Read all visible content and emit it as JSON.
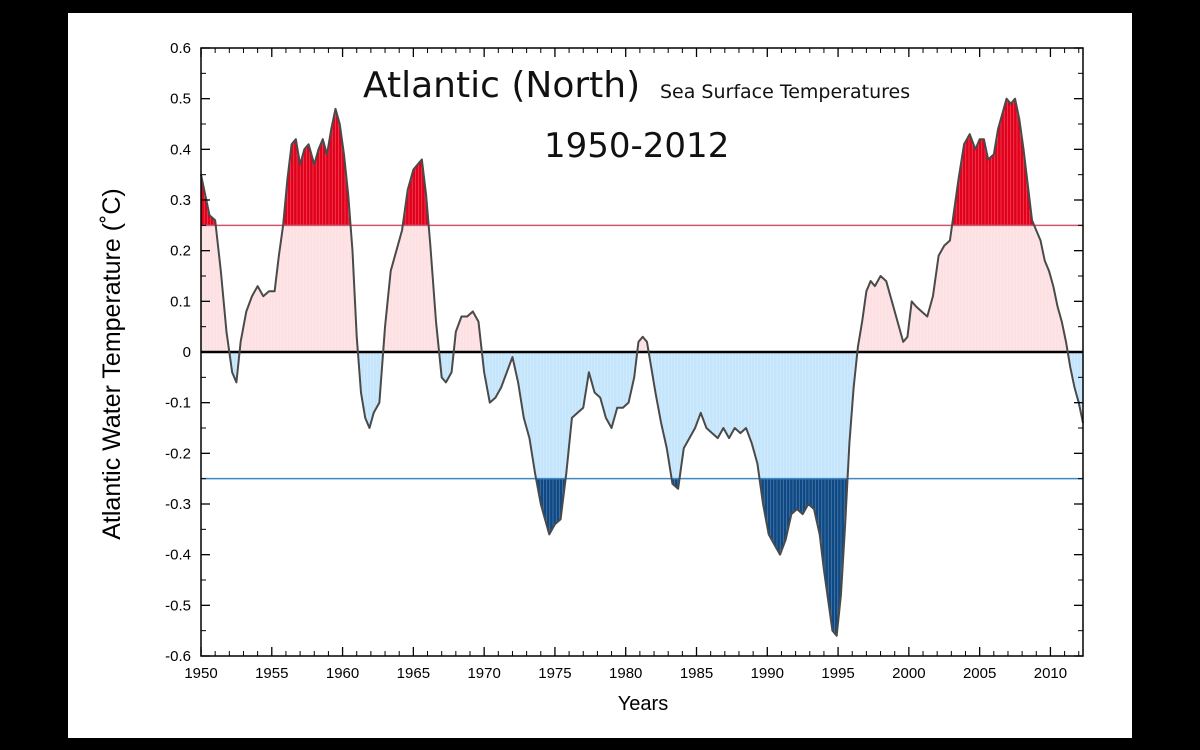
{
  "chart_data": {
    "type": "area",
    "title": "Atlantic (North)",
    "subtitle": "Sea Surface Temperatures",
    "period": "1950-2012",
    "xlabel": "Years",
    "ylabel": "Atlantic Water Temperature (˚C)",
    "xlim": [
      1950,
      2012.3
    ],
    "ylim": [
      -0.6,
      0.6
    ],
    "x_ticks": [
      1950,
      1955,
      1960,
      1965,
      1970,
      1975,
      1980,
      1985,
      1990,
      1995,
      2000,
      2005,
      2010
    ],
    "y_ticks": [
      0.6,
      0.5,
      0.4,
      0.3,
      0.2,
      0.1,
      0,
      -0.1,
      -0.2,
      -0.3,
      -0.4,
      -0.5,
      -0.6
    ],
    "thresholds": {
      "upper": 0.25,
      "lower": -0.25
    },
    "grid": false,
    "colors": {
      "line": "#4a4a4a",
      "zero_line": "#000000",
      "above_threshold": "#e3001b",
      "positive_fill": "#fde0e2",
      "negative_fill": "#c4e5fb",
      "below_threshold": "#0d4a85",
      "upper_threshold_line": "#d0566d",
      "lower_threshold_line": "#3e89c2"
    },
    "series": [
      {
        "x": [
          1950.0,
          1950.3,
          1950.6,
          1951.0,
          1951.4,
          1951.8,
          1952.2,
          1952.5,
          1952.8,
          1953.2,
          1953.6,
          1954.0,
          1954.4,
          1954.8,
          1955.2,
          1955.5,
          1955.8,
          1956.1,
          1956.4,
          1956.7,
          1957.0,
          1957.3,
          1957.6,
          1958.0,
          1958.3,
          1958.6,
          1958.9,
          1959.2,
          1959.5,
          1959.8,
          1960.1,
          1960.4,
          1960.7,
          1961.0,
          1961.3,
          1961.6,
          1961.9,
          1962.2,
          1962.6,
          1963.0,
          1963.4,
          1963.8,
          1964.2,
          1964.6,
          1965.0,
          1965.3,
          1965.6,
          1965.9,
          1966.2,
          1966.6,
          1967.0,
          1967.3,
          1967.7,
          1968.0,
          1968.4,
          1968.8,
          1969.2,
          1969.6,
          1970.0,
          1970.4,
          1970.8,
          1971.2,
          1971.6,
          1972.0,
          1972.4,
          1972.8,
          1973.2,
          1973.6,
          1974.0,
          1974.3,
          1974.6,
          1975.0,
          1975.4,
          1975.8,
          1976.2,
          1976.6,
          1977.0,
          1977.4,
          1977.8,
          1978.2,
          1978.6,
          1979.0,
          1979.4,
          1979.8,
          1980.2,
          1980.6,
          1980.9,
          1981.2,
          1981.5,
          1981.8,
          1982.1,
          1982.5,
          1982.9,
          1983.3,
          1983.7,
          1984.1,
          1984.5,
          1984.9,
          1985.3,
          1985.7,
          1986.1,
          1986.5,
          1986.9,
          1987.3,
          1987.7,
          1988.1,
          1988.5,
          1988.9,
          1989.3,
          1989.7,
          1990.1,
          1990.5,
          1990.9,
          1991.3,
          1991.7,
          1992.1,
          1992.5,
          1992.9,
          1993.3,
          1993.7,
          1994.0,
          1994.3,
          1994.6,
          1994.9,
          1995.2,
          1995.5,
          1995.8,
          1996.1,
          1996.4,
          1996.7,
          1997.0,
          1997.3,
          1997.6,
          1998.0,
          1998.4,
          1998.8,
          1999.2,
          1999.6,
          1999.9,
          2000.2,
          2000.5,
          2000.9,
          2001.3,
          2001.7,
          2002.1,
          2002.5,
          2002.9,
          2003.2,
          2003.5,
          2003.9,
          2004.3,
          2004.7,
          2005.0,
          2005.3,
          2005.6,
          2006.0,
          2006.3,
          2006.6,
          2006.9,
          2007.2,
          2007.5,
          2007.8,
          2008.1,
          2008.4,
          2008.7,
          2009.0,
          2009.3,
          2009.6,
          2009.9,
          2010.2,
          2010.5,
          2010.8,
          2011.1,
          2011.4,
          2011.7,
          2012.0,
          2012.3
        ],
        "y": [
          0.35,
          0.31,
          0.27,
          0.26,
          0.16,
          0.04,
          -0.04,
          -0.06,
          0.02,
          0.08,
          0.11,
          0.13,
          0.11,
          0.12,
          0.12,
          0.19,
          0.25,
          0.34,
          0.41,
          0.42,
          0.37,
          0.4,
          0.41,
          0.37,
          0.4,
          0.42,
          0.39,
          0.44,
          0.48,
          0.45,
          0.39,
          0.31,
          0.2,
          0.03,
          -0.08,
          -0.13,
          -0.15,
          -0.12,
          -0.1,
          0.05,
          0.16,
          0.2,
          0.24,
          0.32,
          0.36,
          0.37,
          0.38,
          0.31,
          0.21,
          0.06,
          -0.05,
          -0.06,
          -0.04,
          0.04,
          0.07,
          0.07,
          0.08,
          0.06,
          -0.04,
          -0.1,
          -0.09,
          -0.07,
          -0.04,
          -0.01,
          -0.06,
          -0.13,
          -0.17,
          -0.24,
          -0.3,
          -0.33,
          -0.36,
          -0.34,
          -0.33,
          -0.24,
          -0.13,
          -0.12,
          -0.11,
          -0.04,
          -0.08,
          -0.09,
          -0.13,
          -0.15,
          -0.11,
          -0.11,
          -0.1,
          -0.05,
          0.02,
          0.03,
          0.02,
          -0.03,
          -0.08,
          -0.14,
          -0.19,
          -0.26,
          -0.27,
          -0.19,
          -0.17,
          -0.15,
          -0.12,
          -0.15,
          -0.16,
          -0.17,
          -0.15,
          -0.17,
          -0.15,
          -0.16,
          -0.15,
          -0.18,
          -0.22,
          -0.3,
          -0.36,
          -0.38,
          -0.4,
          -0.37,
          -0.32,
          -0.31,
          -0.32,
          -0.3,
          -0.31,
          -0.36,
          -0.43,
          -0.49,
          -0.55,
          -0.56,
          -0.48,
          -0.34,
          -0.18,
          -0.07,
          0.01,
          0.06,
          0.12,
          0.14,
          0.13,
          0.15,
          0.14,
          0.1,
          0.06,
          0.02,
          0.03,
          0.1,
          0.09,
          0.08,
          0.07,
          0.11,
          0.19,
          0.21,
          0.22,
          0.28,
          0.34,
          0.41,
          0.43,
          0.4,
          0.42,
          0.42,
          0.38,
          0.39,
          0.44,
          0.47,
          0.5,
          0.49,
          0.5,
          0.46,
          0.4,
          0.33,
          0.26,
          0.24,
          0.22,
          0.18,
          0.16,
          0.13,
          0.09,
          0.06,
          0.02,
          -0.03,
          -0.07,
          -0.1,
          -0.14
        ]
      }
    ]
  }
}
